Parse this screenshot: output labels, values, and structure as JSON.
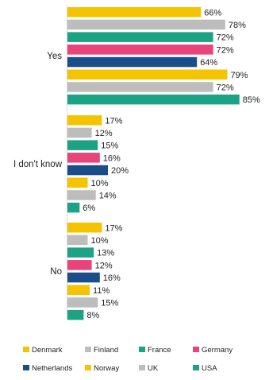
{
  "chart_data": {
    "type": "bar",
    "orientation": "horizontal",
    "categories": [
      "Yes",
      "I don't know",
      "No"
    ],
    "series": [
      {
        "name": "Denmark",
        "color": "#F5C400",
        "values": [
          66,
          17,
          17
        ]
      },
      {
        "name": "Finland",
        "color": "#BDBDBD",
        "values": [
          78,
          12,
          10
        ]
      },
      {
        "name": "France",
        "color": "#1BA383",
        "values": [
          72,
          15,
          13
        ]
      },
      {
        "name": "Germany",
        "color": "#E8437A",
        "values": [
          72,
          16,
          12
        ]
      },
      {
        "name": "Netherlands",
        "color": "#1A4E8A",
        "values": [
          64,
          20,
          16
        ]
      },
      {
        "name": "Norway",
        "color": "#F5C400",
        "values": [
          79,
          10,
          11
        ]
      },
      {
        "name": "UK",
        "color": "#BDBDBD",
        "values": [
          72,
          14,
          15
        ]
      },
      {
        "name": "USA",
        "color": "#1BA383",
        "values": [
          85,
          6,
          8
        ]
      }
    ],
    "value_suffix": "%",
    "xlim": [
      0,
      100
    ],
    "title": "",
    "xlabel": "",
    "ylabel": "",
    "grid": false,
    "legend_position": "bottom"
  }
}
